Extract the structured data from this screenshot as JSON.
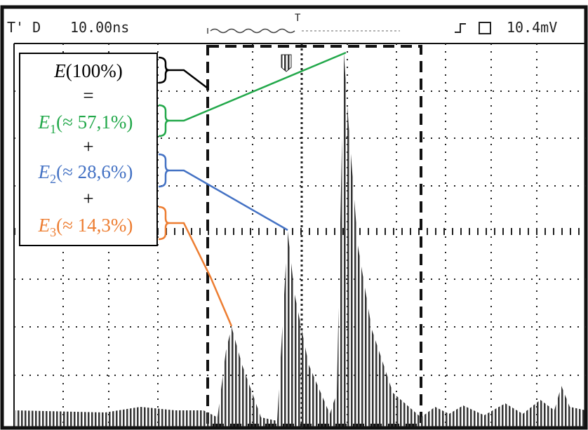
{
  "header": {
    "mode": "T' D",
    "timebase": "10.00ns",
    "trigger_mark": "T",
    "level": "10.4mV"
  },
  "annotation": {
    "total": {
      "symbol": "E",
      "text": "(100%)"
    },
    "equals": "=",
    "parts": [
      {
        "symbol": "E",
        "subscript": "1",
        "text": "(≈ 57,1%)"
      },
      {
        "symbol": "E",
        "subscript": "2",
        "text": "(≈ 28,6%)"
      },
      {
        "symbol": "E",
        "subscript": "3",
        "text": "(≈ 14,3%)"
      }
    ],
    "plus": "+"
  }
}
